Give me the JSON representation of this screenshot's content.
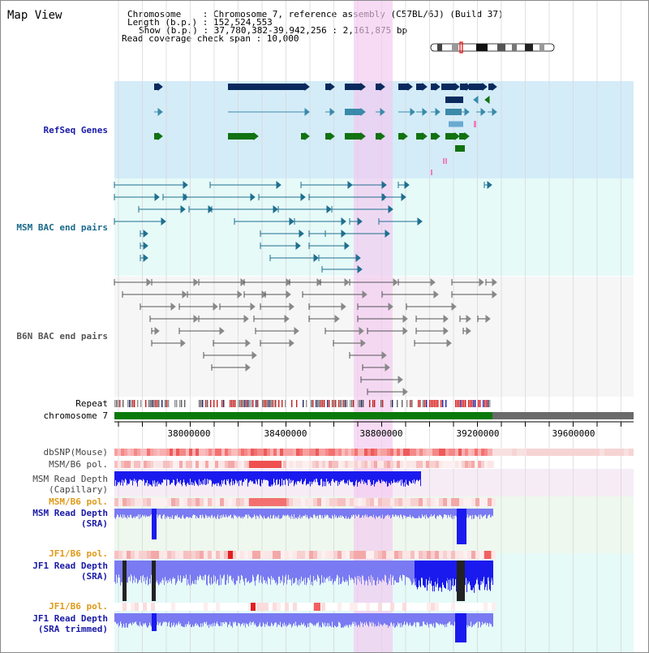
{
  "header": {
    "title": "Map View",
    "chromosome": "Chromosome    : Chromosome 7, reference assembly (C57BL/6J) (Build 37)",
    "length": "Length (b.p.) : 152,524,553",
    "show": "Show (b.p.) : 37,780,382-39,942,256 : 2,161,875 bp",
    "span": "Read coverage check span : 10,000"
  },
  "tracks": {
    "refseq": "RefSeq Genes",
    "msm_bac": "MSM BAC end pairs",
    "b6n_bac": "B6N BAC end pairs",
    "repeat": "Repeat",
    "chromosome": "chromosome 7",
    "dbsnp": "dbSNP(Mouse)",
    "msm_b6_pol": "MSM/B6 pol.",
    "msm_depth_cap_1": "MSM Read Depth",
    "msm_depth_cap_2": "(Capillary)",
    "msm_b6_pol_2": "MSM/B6 pol.",
    "msm_depth_sra_1": "MSM Read Depth",
    "msm_depth_sra_2": "(SRA)",
    "jf1_b6_pol": "JF1/B6 pol.",
    "jf1_depth_sra_1": "JF1 Read Depth",
    "jf1_depth_sra_2": "(SRA)",
    "jf1_b6_pol_2": "JF1/B6 pol.",
    "jf1_depth_trim_1": "JF1 Read Depth",
    "jf1_depth_trim_2": "(SRA trimmed)"
  },
  "axis": {
    "ticks": [
      "38000000",
      "38400000",
      "38800000",
      "39200000",
      "39600000"
    ]
  },
  "colors": {
    "refseq_bg": "#d4ecf8",
    "msm_bg": "#e6faf8",
    "highlight": "#f6d8f2",
    "gene_navy": "#0a2a5e",
    "gene_teal": "#3a8aaa",
    "gene_green": "#127212",
    "msm_line": "#1f6f8f",
    "b6n_line": "#555555",
    "chrom_green": "#0a7a0a",
    "chrom_gray": "#6a6a6a",
    "depth_blue": "#1a1aee",
    "depth_light": "#7a7af2"
  }
}
